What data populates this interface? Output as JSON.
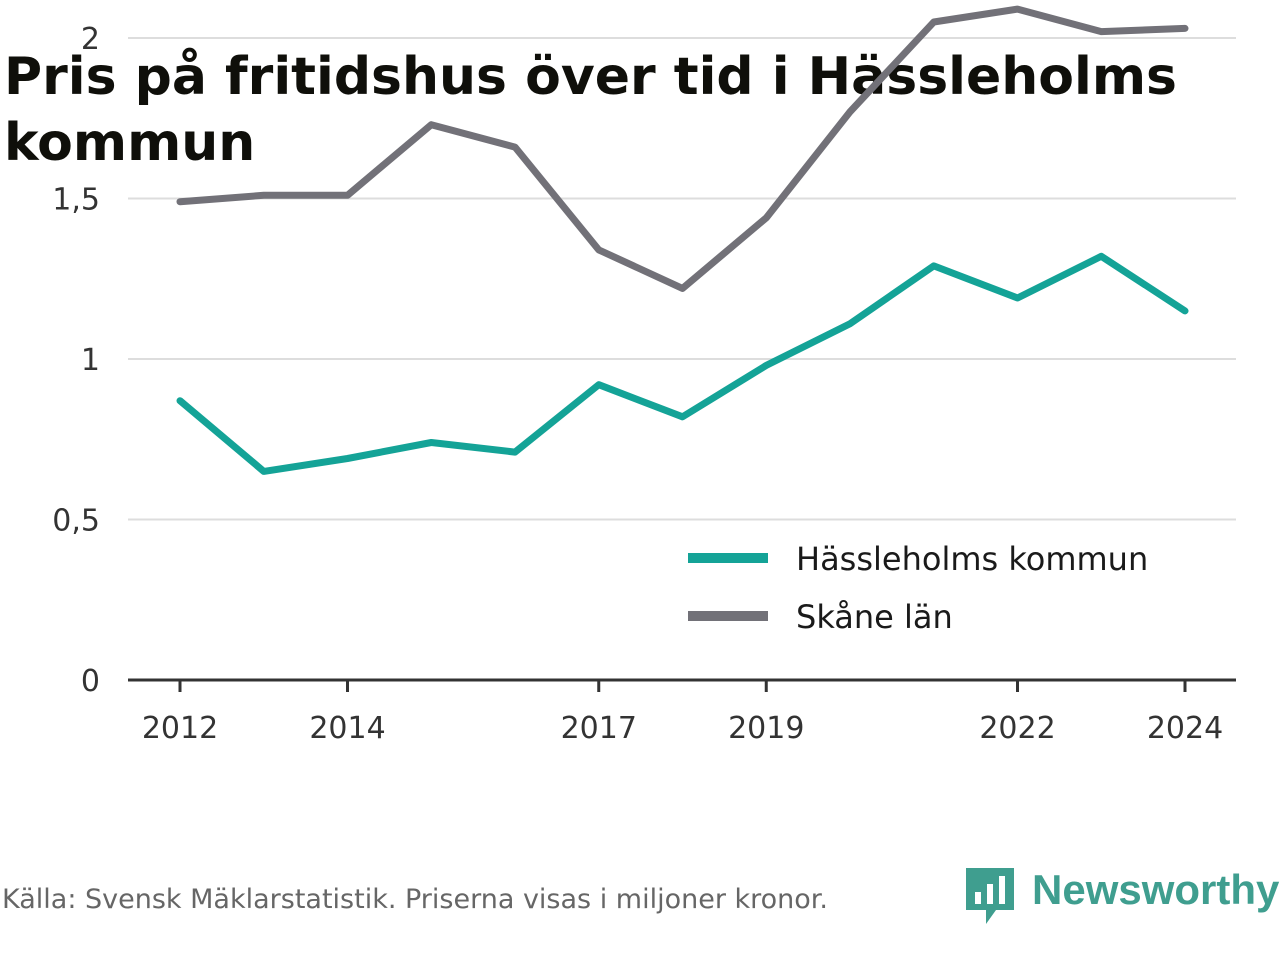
{
  "title": "Pris på fritidshus över tid i Hässleholms kommun",
  "footer": {
    "source": "Källa: Svensk Mäklarstatistik. Priserna visas i miljoner kronor.",
    "brand": "Newsworthy",
    "brand_color": "#3f9e8f",
    "brand_icon": "bar-chart-speech-bubble-icon"
  },
  "chart_data": {
    "type": "line",
    "x": [
      2012,
      2013,
      2014,
      2015,
      2016,
      2017,
      2018,
      2019,
      2020,
      2021,
      2022,
      2023,
      2024
    ],
    "x_tick_labels": [
      "2012",
      "2014",
      "2017",
      "2019",
      "2022",
      "2024"
    ],
    "y_ticks": [
      0,
      0.5,
      1,
      1.5,
      2
    ],
    "y_tick_labels": [
      "0",
      "0,5",
      "1",
      "1,5",
      "2"
    ],
    "ylim": [
      0,
      2.2
    ],
    "grid": true,
    "legend_position": "bottom-right",
    "series": [
      {
        "name": "Hässleholms kommun",
        "color": "#14a397",
        "values": [
          0.87,
          0.65,
          0.69,
          0.74,
          0.71,
          0.92,
          0.82,
          0.98,
          1.11,
          1.29,
          1.19,
          1.32,
          1.15
        ]
      },
      {
        "name": "Skåne län",
        "color": "#727178",
        "values": [
          1.49,
          1.51,
          1.51,
          1.73,
          1.66,
          1.34,
          1.22,
          1.44,
          1.77,
          2.05,
          2.09,
          2.02,
          2.03
        ]
      }
    ]
  }
}
